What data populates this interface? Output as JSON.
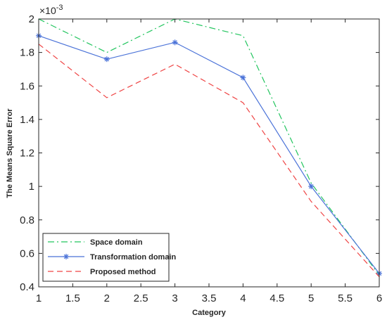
{
  "chart_data": {
    "type": "line",
    "title": "",
    "xlabel": "Category",
    "ylabel": "The Means Square Error",
    "y_exponent_label": "×10",
    "y_exponent_power": "-3",
    "xlim": [
      1,
      6
    ],
    "ylim": [
      0.4,
      2.0
    ],
    "x_ticks": [
      1,
      1.5,
      2,
      2.5,
      3,
      3.5,
      4,
      4.5,
      5,
      5.5,
      6
    ],
    "x_tick_labels": [
      "1",
      "1.5",
      "2",
      "2.5",
      "3",
      "3.5",
      "4",
      "4.5",
      "5",
      "5.5",
      "6"
    ],
    "y_ticks": [
      0.4,
      0.6,
      0.8,
      1.0,
      1.2,
      1.4,
      1.6,
      1.8,
      2.0
    ],
    "y_tick_labels": [
      "0.4",
      "0.6",
      "0.8",
      "1",
      "1.2",
      "1.4",
      "1.6",
      "1.8",
      "2"
    ],
    "grid": false,
    "legend_placement": "bottom-left",
    "x": [
      1,
      2,
      3,
      4,
      5,
      6
    ],
    "series": [
      {
        "name": "Space domain",
        "values": [
          2.0,
          1.8,
          2.0,
          1.9,
          1.02,
          0.47
        ],
        "color": "#22c55e",
        "dash": "dash-dot",
        "marker": "none"
      },
      {
        "name": "Transformation domain",
        "values": [
          1.9,
          1.76,
          1.86,
          1.65,
          1.0,
          0.48
        ],
        "color": "#4a72d8",
        "dash": "solid",
        "marker": "asterisk"
      },
      {
        "name": "Proposed method",
        "values": [
          1.85,
          1.53,
          1.73,
          1.5,
          0.91,
          0.46
        ],
        "color": "#ef4444",
        "dash": "dashed",
        "marker": "none"
      }
    ]
  }
}
